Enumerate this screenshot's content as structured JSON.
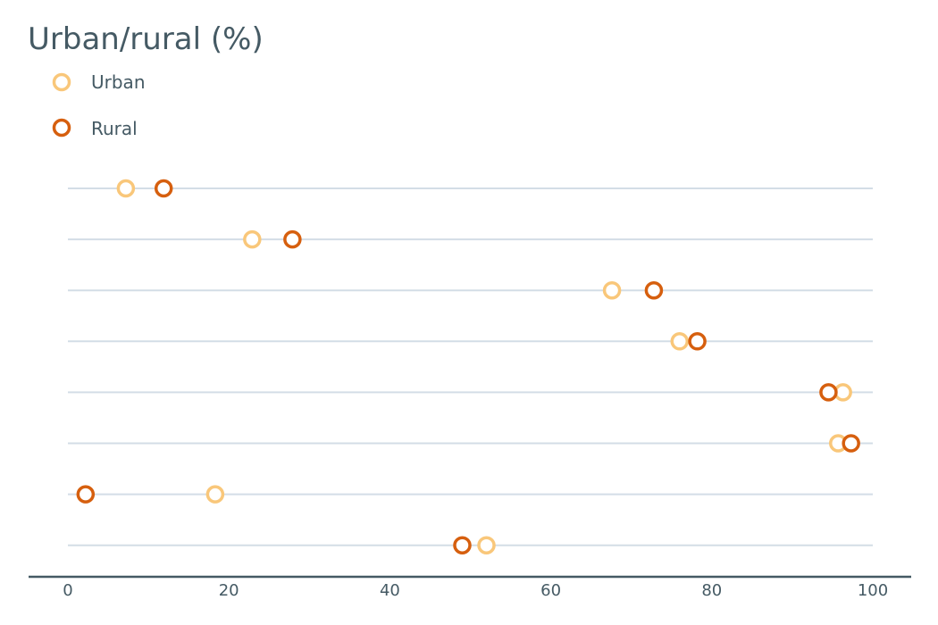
{
  "chart_data": {
    "type": "scatter",
    "title": "Urban/rural (%)",
    "xlabel": "",
    "ylabel": "",
    "xlim": [
      0,
      100
    ],
    "x_ticks": [
      "0",
      "20",
      "40",
      "60",
      "80",
      "100"
    ],
    "grid": true,
    "legend_position": "top-left",
    "series": [
      {
        "name": "Urban",
        "color": "#f9c77a",
        "values": [
          7.2,
          22.9,
          67.6,
          76.0,
          96.3,
          95.7,
          18.3,
          52.0
        ]
      },
      {
        "name": "Rural",
        "color": "#d65f0e",
        "values": [
          11.9,
          27.9,
          72.8,
          78.2,
          94.5,
          97.3,
          2.2,
          49.0
        ]
      }
    ]
  }
}
